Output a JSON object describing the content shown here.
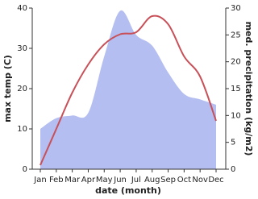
{
  "chart_data": {
    "type": "line",
    "x_label": "date (month)",
    "y_label": "max temp (C)",
    "y2_label": "med. precipitation (kg/m2)",
    "categories": [
      "Jan",
      "Feb",
      "Mar",
      "Apr",
      "May",
      "Jun",
      "Jul",
      "Aug",
      "Sep",
      "Oct",
      "Nov",
      "Dec"
    ],
    "series": [
      {
        "name": "max temp",
        "color": "#c85058",
        "values": [
          1,
          10,
          19,
          26,
          31,
          33.5,
          34,
          38,
          36,
          28,
          23,
          12
        ]
      },
      {
        "name": "med. precipitation",
        "color": "#b4bef0",
        "axis": "y2",
        "values": [
          7.5,
          9.5,
          10,
          10.5,
          21,
          29.5,
          25,
          23,
          18,
          14,
          13,
          12
        ]
      }
    ],
    "ylim": [
      0,
      40
    ],
    "yticks": [
      0,
      10,
      20,
      30,
      40
    ],
    "y2lim": [
      0,
      30
    ],
    "y2ticks": [
      0,
      5,
      10,
      15,
      20,
      25,
      30
    ]
  }
}
